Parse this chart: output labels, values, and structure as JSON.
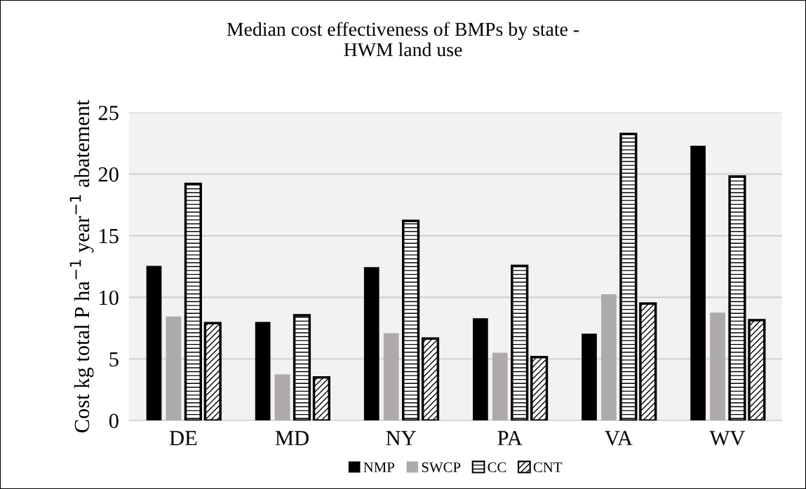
{
  "chart_data": {
    "type": "bar",
    "title": "Median cost effectiveness of BMPs by state -\nHWM land use",
    "ylabel": "Cost kg total P ha$^{−1}$ year$^{−1}$ abatement",
    "categories": [
      "DE",
      "MD",
      "NY",
      "PA",
      "VA",
      "WV"
    ],
    "series": [
      {
        "name": "NMP",
        "color": "#000000",
        "values": [
          12.55,
          8.0,
          12.45,
          8.3,
          7.05,
          22.3
        ]
      },
      {
        "name": "SWCP",
        "color": "#aeaaaa",
        "values": [
          8.45,
          3.75,
          7.1,
          5.5,
          10.25,
          8.75
        ]
      },
      {
        "name": "CC",
        "color": "#000000",
        "values": [
          19.2,
          8.55,
          16.2,
          12.55,
          23.25,
          19.8
        ]
      },
      {
        "name": "CNT",
        "color": "#000000",
        "values": [
          7.9,
          3.5,
          6.65,
          5.15,
          9.5,
          8.15
        ]
      }
    ],
    "ylim": [
      0,
      25
    ],
    "yticks": [
      0,
      5,
      10,
      15,
      20,
      25
    ],
    "grid": "y",
    "legend": "bottom"
  }
}
